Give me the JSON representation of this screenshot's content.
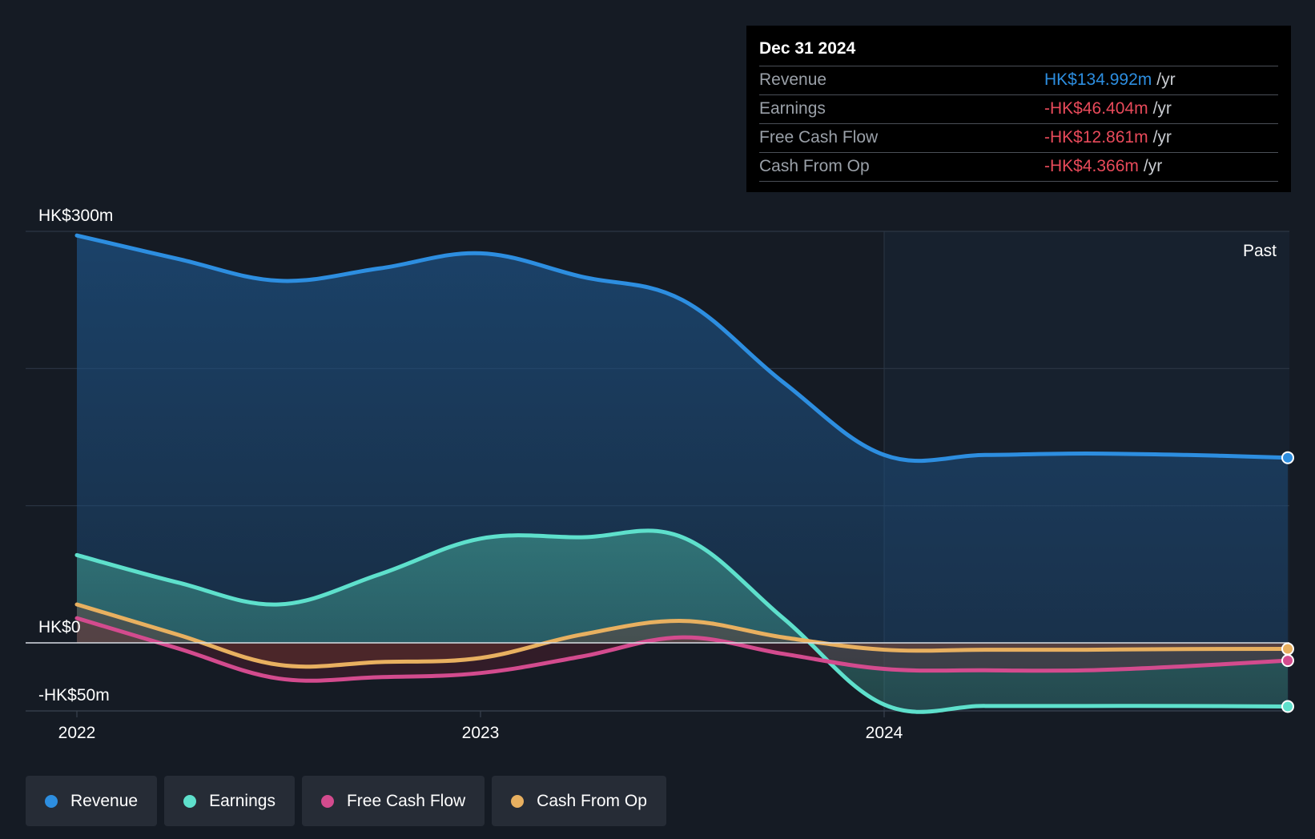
{
  "tooltip": {
    "date": "Dec 31 2024",
    "rows": [
      {
        "label": "Revenue",
        "value": "HK$134.992m",
        "unit": "/yr",
        "color": "#2d8ee0"
      },
      {
        "label": "Earnings",
        "value": "-HK$46.404m",
        "unit": "/yr",
        "color": "#e84a5a"
      },
      {
        "label": "Free Cash Flow",
        "value": "-HK$12.861m",
        "unit": "/yr",
        "color": "#e84a5a"
      },
      {
        "label": "Cash From Op",
        "value": "-HK$4.366m",
        "unit": "/yr",
        "color": "#e84a5a"
      }
    ]
  },
  "legend": [
    {
      "label": "Revenue",
      "color": "#2d8ee0"
    },
    {
      "label": "Earnings",
      "color": "#5ee0cc"
    },
    {
      "label": "Free Cash Flow",
      "color": "#d34b8e"
    },
    {
      "label": "Cash From Op",
      "color": "#e8b060"
    }
  ],
  "chart_data": {
    "type": "area",
    "title": "",
    "past_label": "Past",
    "y_tick_labels": [
      "HK$300m",
      "HK$0",
      "-HK$50m"
    ],
    "y_ticks": [
      300,
      0,
      -50
    ],
    "ylim": [
      -50,
      300
    ],
    "xlim": [
      2022.0,
      2025.0
    ],
    "x_ticks": [
      2022,
      2023,
      2024
    ],
    "x_tick_labels": [
      "2022",
      "2023",
      "2024"
    ],
    "past_region_start": 2024.0,
    "series": [
      {
        "name": "Revenue",
        "color": "#2d8ee0",
        "x": [
          2022.0,
          2022.25,
          2022.5,
          2022.75,
          2023.0,
          2023.25,
          2023.5,
          2023.75,
          2024.0,
          2024.25,
          2024.5,
          2024.75,
          2025.0
        ],
        "values": [
          297,
          280,
          264,
          273,
          284,
          267,
          250,
          190,
          137,
          137,
          138,
          137,
          135
        ]
      },
      {
        "name": "Earnings",
        "color": "#5ee0cc",
        "x": [
          2022.0,
          2022.25,
          2022.5,
          2022.75,
          2023.0,
          2023.25,
          2023.5,
          2023.75,
          2024.0,
          2024.25,
          2024.5,
          2024.75,
          2025.0
        ],
        "values": [
          64,
          44,
          28,
          50,
          76,
          77,
          77,
          18,
          -45,
          -46,
          -46,
          -46,
          -46.4
        ]
      },
      {
        "name": "Free Cash Flow",
        "color": "#d34b8e",
        "x": [
          2022.0,
          2022.25,
          2022.5,
          2022.75,
          2023.0,
          2023.25,
          2023.5,
          2023.75,
          2024.0,
          2024.25,
          2024.5,
          2024.75,
          2025.0
        ],
        "values": [
          18,
          -4,
          -26,
          -25,
          -22,
          -10,
          4,
          -8,
          -19,
          -20,
          -20,
          -17,
          -12.9
        ]
      },
      {
        "name": "Cash From Op",
        "color": "#e8b060",
        "x": [
          2022.0,
          2022.25,
          2022.5,
          2022.75,
          2023.0,
          2023.25,
          2023.5,
          2023.75,
          2024.0,
          2024.25,
          2024.5,
          2024.75,
          2025.0
        ],
        "values": [
          28,
          6,
          -16,
          -14,
          -11,
          6,
          16,
          4,
          -5,
          -5,
          -5,
          -4.5,
          -4.4
        ]
      }
    ]
  }
}
